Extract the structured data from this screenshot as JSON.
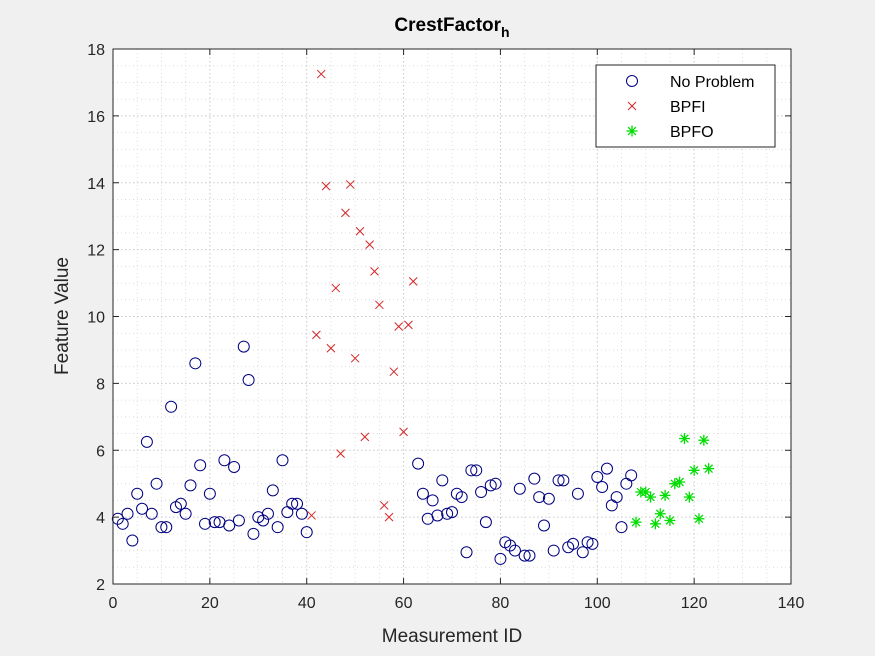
{
  "chart_data": {
    "type": "scatter",
    "title": "CrestFactor",
    "title_subscript": "h",
    "xlabel": "Measurement ID",
    "ylabel": "Feature Value",
    "xlim": [
      0,
      140
    ],
    "ylim": [
      2,
      18
    ],
    "xticks": [
      "0",
      "20",
      "40",
      "60",
      "80",
      "100",
      "120",
      "140"
    ],
    "yticks": [
      "2",
      "4",
      "6",
      "8",
      "10",
      "12",
      "14",
      "16",
      "18"
    ],
    "grid": "on (dotted, major and minor)",
    "legend_position": "top-right",
    "series": [
      {
        "name": "No Problem",
        "marker": "circle",
        "color": "#000080",
        "points": [
          [
            1,
            3.95
          ],
          [
            2,
            3.8
          ],
          [
            3,
            4.1
          ],
          [
            4,
            3.3
          ],
          [
            5,
            4.7
          ],
          [
            6,
            4.25
          ],
          [
            7,
            6.25
          ],
          [
            8,
            4.1
          ],
          [
            9,
            5.0
          ],
          [
            10,
            3.7
          ],
          [
            11,
            3.7
          ],
          [
            12,
            7.3
          ],
          [
            13,
            4.3
          ],
          [
            14,
            4.4
          ],
          [
            15,
            4.1
          ],
          [
            16,
            4.95
          ],
          [
            17,
            8.6
          ],
          [
            18,
            5.55
          ],
          [
            19,
            3.8
          ],
          [
            20,
            4.7
          ],
          [
            21,
            3.85
          ],
          [
            22,
            3.85
          ],
          [
            23,
            5.7
          ],
          [
            24,
            3.75
          ],
          [
            25,
            5.5
          ],
          [
            26,
            3.9
          ],
          [
            27,
            9.1
          ],
          [
            28,
            8.1
          ],
          [
            29,
            3.5
          ],
          [
            30,
            4.0
          ],
          [
            31,
            3.9
          ],
          [
            32,
            4.1
          ],
          [
            33,
            4.8
          ],
          [
            34,
            3.7
          ],
          [
            35,
            5.7
          ],
          [
            36,
            4.15
          ],
          [
            37,
            4.4
          ],
          [
            38,
            4.4
          ],
          [
            39,
            4.1
          ],
          [
            40,
            3.55
          ],
          [
            63,
            5.6
          ],
          [
            64,
            4.7
          ],
          [
            65,
            3.95
          ],
          [
            66,
            4.5
          ],
          [
            67,
            4.05
          ],
          [
            68,
            5.1
          ],
          [
            69,
            4.1
          ],
          [
            70,
            4.15
          ],
          [
            71,
            4.7
          ],
          [
            72,
            4.6
          ],
          [
            73,
            2.95
          ],
          [
            74,
            5.4
          ],
          [
            75,
            5.4
          ],
          [
            76,
            4.75
          ],
          [
            77,
            3.85
          ],
          [
            78,
            4.95
          ],
          [
            79,
            5.0
          ],
          [
            80,
            2.75
          ],
          [
            81,
            3.25
          ],
          [
            82,
            3.15
          ],
          [
            83,
            3.0
          ],
          [
            84,
            4.85
          ],
          [
            85,
            2.85
          ],
          [
            86,
            2.85
          ],
          [
            87,
            5.15
          ],
          [
            88,
            4.6
          ],
          [
            89,
            3.75
          ],
          [
            90,
            4.55
          ],
          [
            91,
            3.0
          ],
          [
            92,
            5.1
          ],
          [
            93,
            5.1
          ],
          [
            94,
            3.1
          ],
          [
            95,
            3.2
          ],
          [
            96,
            4.7
          ],
          [
            97,
            2.95
          ],
          [
            98,
            3.25
          ],
          [
            99,
            3.2
          ],
          [
            100,
            5.2
          ],
          [
            101,
            4.9
          ],
          [
            102,
            5.45
          ],
          [
            103,
            4.35
          ],
          [
            104,
            4.6
          ],
          [
            105,
            3.7
          ],
          [
            106,
            5.0
          ],
          [
            107,
            5.25
          ]
        ]
      },
      {
        "name": "BPFI",
        "marker": "x",
        "color": "#d62728",
        "points": [
          [
            41,
            4.05
          ],
          [
            42,
            9.45
          ],
          [
            43,
            17.25
          ],
          [
            44,
            13.9
          ],
          [
            45,
            9.05
          ],
          [
            46,
            10.85
          ],
          [
            47,
            5.9
          ],
          [
            48,
            13.1
          ],
          [
            49,
            13.95
          ],
          [
            50,
            8.75
          ],
          [
            51,
            12.55
          ],
          [
            52,
            6.4
          ],
          [
            53,
            12.15
          ],
          [
            54,
            11.35
          ],
          [
            55,
            10.35
          ],
          [
            56,
            4.35
          ],
          [
            57,
            4.0
          ],
          [
            58,
            8.35
          ],
          [
            59,
            9.7
          ],
          [
            60,
            6.55
          ],
          [
            61,
            9.75
          ],
          [
            62,
            11.05
          ]
        ]
      },
      {
        "name": "BPFO",
        "marker": "asterisk",
        "color": "#00dd00",
        "points": [
          [
            108,
            3.85
          ],
          [
            109,
            4.75
          ],
          [
            110,
            4.75
          ],
          [
            111,
            4.6
          ],
          [
            112,
            3.8
          ],
          [
            113,
            4.1
          ],
          [
            114,
            4.65
          ],
          [
            115,
            3.9
          ],
          [
            116,
            5.0
          ],
          [
            117,
            5.05
          ],
          [
            118,
            6.35
          ],
          [
            119,
            4.6
          ],
          [
            120,
            5.4
          ],
          [
            121,
            3.95
          ],
          [
            122,
            6.3
          ],
          [
            123,
            5.45
          ]
        ]
      }
    ]
  }
}
